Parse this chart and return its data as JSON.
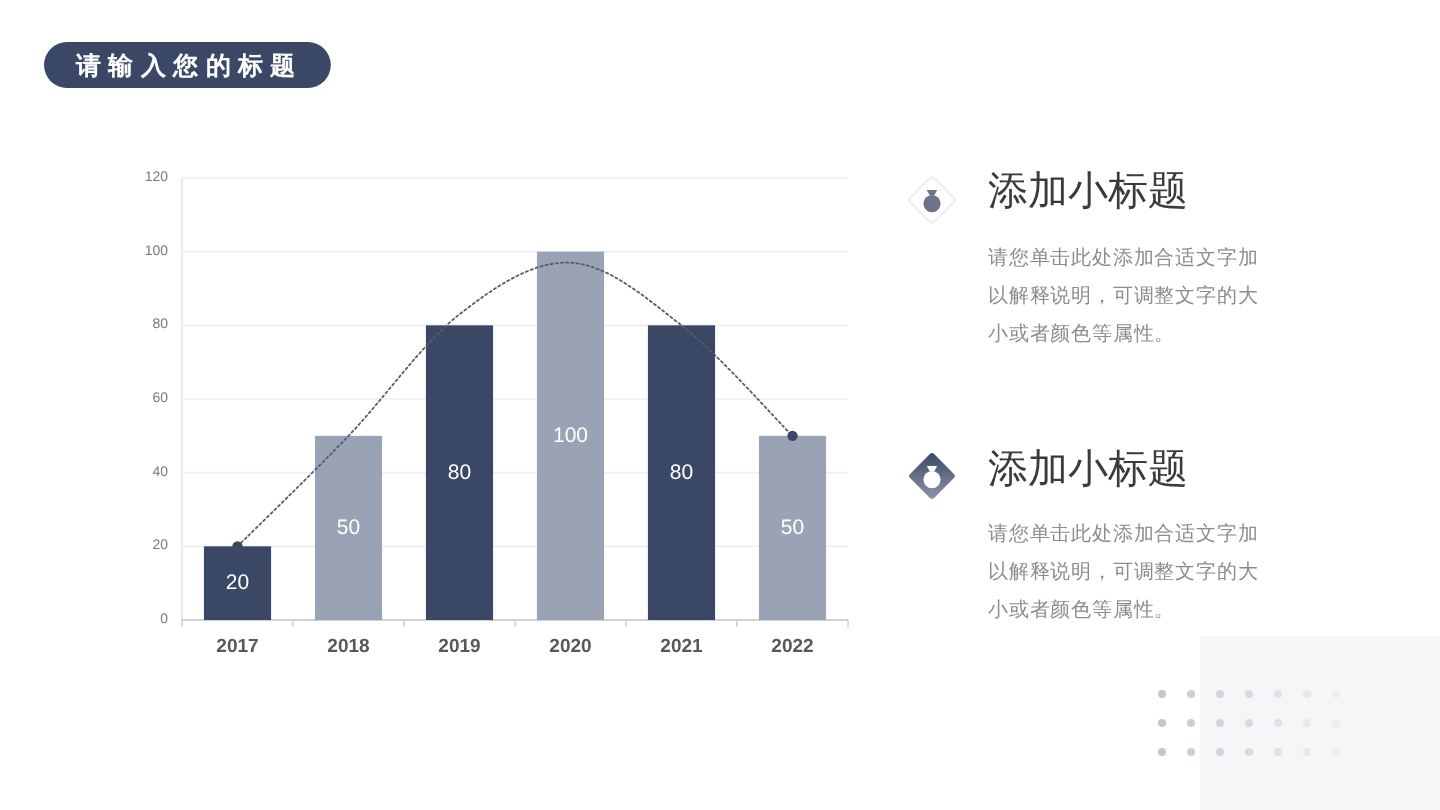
{
  "chart_data": [
    {
      "type": "bar",
      "title": "请输入您的标题",
      "categories": [
        "2017",
        "2018",
        "2019",
        "2020",
        "2021",
        "2022"
      ],
      "series": [
        {
          "values": [
            20,
            50,
            80,
            100,
            80,
            50
          ],
          "colors": [
            "#3a4866",
            "#9aa3b5",
            "#3a4866",
            "#9aa3b5",
            "#3a4866",
            "#9aa3b5"
          ],
          "value_labels": [
            "20",
            "50",
            "80",
            "100",
            "80",
            "50"
          ]
        },
        {
          "type": "line",
          "values": [
            20,
            50,
            83,
            97,
            80,
            50
          ],
          "color": "#555c6c",
          "line_style": "dotted",
          "marker": "none"
        },
        {
          "type": "scatter",
          "values": [
            20,
            null,
            null,
            null,
            null,
            50
          ],
          "color": "#3a4866",
          "marker": "circle"
        }
      ],
      "ylim": [
        0,
        120
      ],
      "yticks": [
        0,
        20,
        40,
        60,
        80,
        100,
        120
      ],
      "grid": "y"
    },
    {
      "type": "other",
      "annotations": [
        "添加小标题",
        "请您单击此处添加合适文字加以解释说明，可调整文字的大小或者颜色等属性。",
        "添加小标题",
        "请您单击此处添加合适文字加以解释说明，可调整文字的大小或者颜色等属性。"
      ]
    }
  ]
}
